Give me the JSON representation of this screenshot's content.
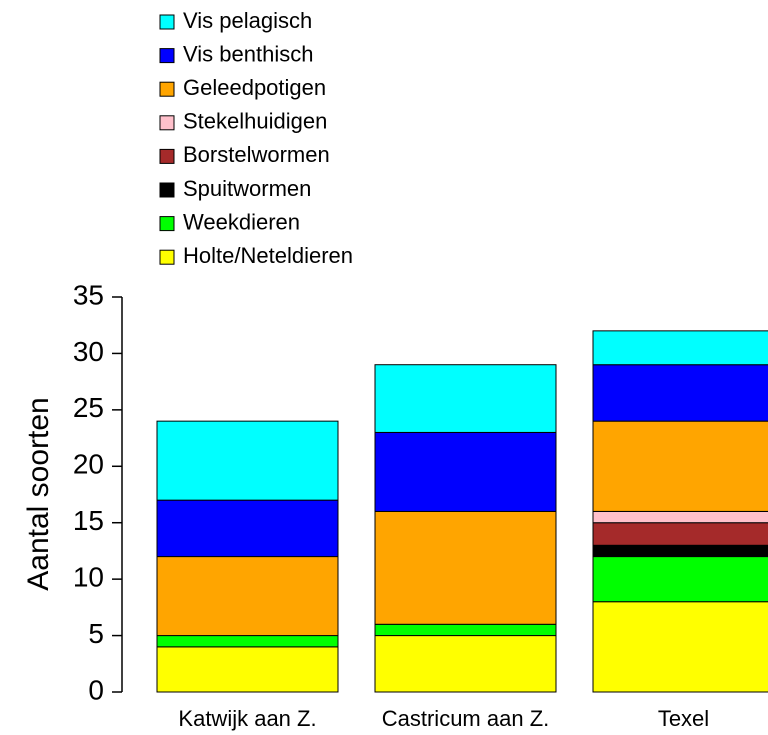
{
  "chart_data": {
    "type": "stacked_bar",
    "y_label": "Aantal soorten",
    "categories": [
      "Katwijk aan Z.",
      "Castricum aan Z.",
      "Texel"
    ],
    "series": [
      {
        "name": "Holte/Neteldieren",
        "color": "#ffff00",
        "values": [
          4,
          5,
          8
        ]
      },
      {
        "name": "Weekdieren",
        "color": "#00ff00",
        "values": [
          1,
          1,
          4
        ]
      },
      {
        "name": "Spuitwormen",
        "color": "#000000",
        "values": [
          0,
          0,
          1
        ]
      },
      {
        "name": "Borstelwormen",
        "color": "#a52a2a",
        "values": [
          0,
          0,
          2
        ]
      },
      {
        "name": "Stekelhuidigen",
        "color": "#ffc0cb",
        "values": [
          0,
          0,
          1
        ]
      },
      {
        "name": "Geleedpotigen",
        "color": "#ffa500",
        "values": [
          7,
          10,
          8
        ]
      },
      {
        "name": "Vis benthisch",
        "color": "#0000ff",
        "values": [
          5,
          7,
          5
        ]
      },
      {
        "name": "Vis pelagisch",
        "color": "#00ffff",
        "values": [
          7,
          6,
          3
        ]
      }
    ],
    "ylim": [
      0,
      35
    ],
    "yticks": [
      0,
      5,
      10,
      15,
      20,
      25,
      30,
      35
    ]
  }
}
